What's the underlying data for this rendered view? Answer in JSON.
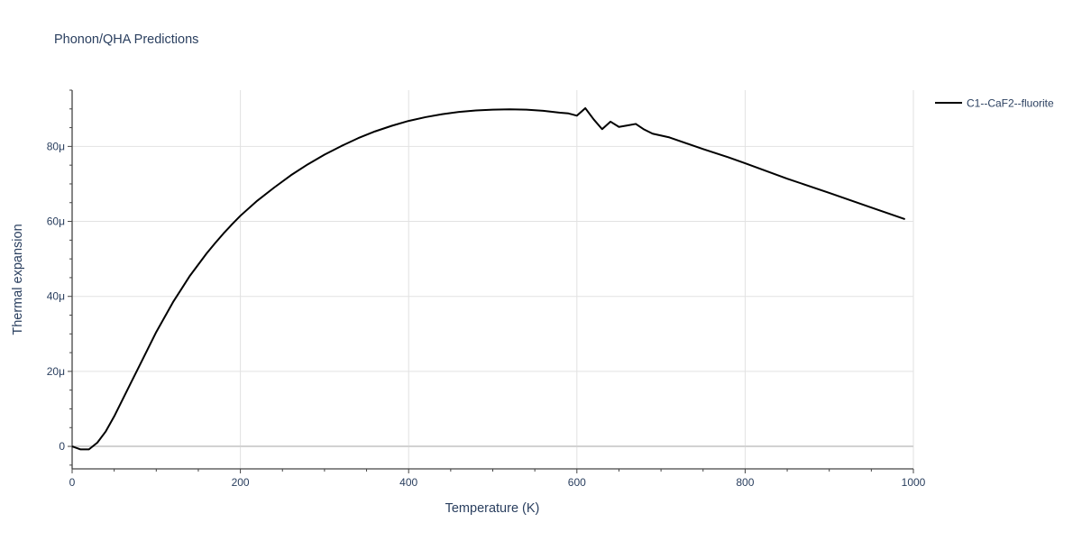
{
  "chart_data": {
    "type": "line",
    "title": "Phonon/QHA Predictions",
    "xlabel": "Temperature (K)",
    "ylabel": "Thermal expansion",
    "xlim": [
      0,
      1000
    ],
    "ylim": [
      -6,
      95
    ],
    "x_ticks": [
      0,
      200,
      400,
      600,
      800,
      1000
    ],
    "x_tick_labels": [
      "0",
      "200",
      "400",
      "600",
      "800",
      "1000"
    ],
    "y_ticks": [
      0,
      20,
      40,
      60,
      80
    ],
    "y_tick_labels": [
      "0",
      "20μ",
      "40μ",
      "60μ",
      "80μ"
    ],
    "grid": true,
    "legend_position": "top-right",
    "series_colors": [
      "#000000"
    ],
    "series": [
      {
        "name": "C1--CaF2--fluorite",
        "x": [
          0,
          10,
          20,
          30,
          40,
          50,
          60,
          70,
          80,
          90,
          100,
          110,
          120,
          130,
          140,
          150,
          160,
          170,
          180,
          190,
          200,
          220,
          240,
          260,
          280,
          300,
          320,
          340,
          360,
          380,
          400,
          420,
          440,
          460,
          480,
          500,
          520,
          540,
          560,
          580,
          590,
          600,
          610,
          620,
          630,
          640,
          650,
          660,
          670,
          680,
          690,
          710,
          750,
          780,
          800,
          850,
          900,
          950,
          990
        ],
        "y": [
          0,
          -0.8,
          -0.8,
          1,
          4,
          8,
          12.5,
          17,
          21.5,
          26,
          30.5,
          34.5,
          38.5,
          42,
          45.5,
          48.5,
          51.5,
          54.2,
          56.8,
          59.2,
          61.5,
          65.5,
          69,
          72.3,
          75.2,
          77.8,
          80.1,
          82.2,
          84,
          85.5,
          86.8,
          87.8,
          88.6,
          89.2,
          89.6,
          89.8,
          89.9,
          89.8,
          89.5,
          89,
          88.8,
          88.2,
          90.2,
          87.2,
          84.6,
          86.6,
          85.2,
          85.6,
          86,
          84.5,
          83.4,
          82.4,
          79.3,
          77.1,
          75.5,
          71.4,
          67.6,
          63.7,
          60.6
        ]
      }
    ]
  }
}
